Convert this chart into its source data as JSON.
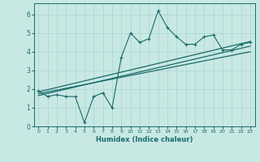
{
  "xlabel": "Humidex (Indice chaleur)",
  "ylabel": "",
  "bg_color": "#c8e8e4",
  "line_color": "#1a6b6b",
  "grid_color": "#aad4d0",
  "xlim": [
    -0.5,
    23.5
  ],
  "ylim": [
    0,
    6.6
  ],
  "xticks": [
    0,
    1,
    2,
    3,
    4,
    5,
    6,
    7,
    8,
    9,
    10,
    11,
    12,
    13,
    14,
    15,
    16,
    17,
    18,
    19,
    20,
    21,
    22,
    23
  ],
  "yticks": [
    0,
    1,
    2,
    3,
    4,
    5,
    6
  ],
  "scatter_x": [
    0,
    1,
    2,
    3,
    4,
    5,
    6,
    7,
    8,
    9,
    10,
    11,
    12,
    13,
    14,
    15,
    16,
    17,
    18,
    19,
    20,
    21,
    22,
    23
  ],
  "scatter_y": [
    1.9,
    1.6,
    1.7,
    1.6,
    1.6,
    0.2,
    1.6,
    1.8,
    1.0,
    3.7,
    5.0,
    4.5,
    4.7,
    6.2,
    5.3,
    4.8,
    4.4,
    4.4,
    4.8,
    4.9,
    4.1,
    4.1,
    4.4,
    4.5
  ],
  "trend1_x": [
    0,
    23
  ],
  "trend1_y": [
    1.65,
    4.3
  ],
  "trend2_x": [
    0,
    23
  ],
  "trend2_y": [
    1.85,
    4.55
  ],
  "trend3_x": [
    0,
    23
  ],
  "trend3_y": [
    1.75,
    4.0
  ]
}
